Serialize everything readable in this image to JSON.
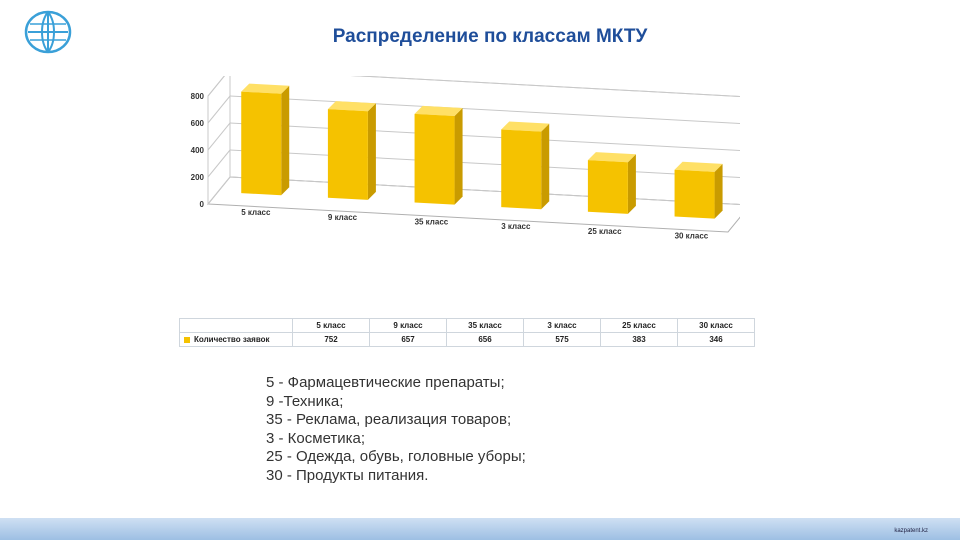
{
  "title": "Распределение по классам МКТУ",
  "chart_data": {
    "type": "bar",
    "categories": [
      "5 класс",
      "9 класс",
      "35 класс",
      "3 класс",
      "25 класс",
      "30 класс"
    ],
    "series": [
      {
        "name": "Количество заявок",
        "values": [
          752,
          657,
          656,
          575,
          383,
          346
        ]
      }
    ],
    "yticks": [
      0,
      200,
      400,
      600,
      800
    ],
    "ylim": [
      0,
      800
    ],
    "bar_color": "#f5c200",
    "grid": true,
    "legend": "table below chart"
  },
  "descriptions": [
    "5 - Фармацевтические препараты;",
    "9 -Техника;",
    "35 - Реклама, реализация товаров;",
    "3 - Косметика;",
    "25 - Одежда, обувь, головные уборы;",
    "30 - Продукты питания."
  ],
  "footer_text": "kazpatent.kz",
  "logo": "globe-logo-icon"
}
